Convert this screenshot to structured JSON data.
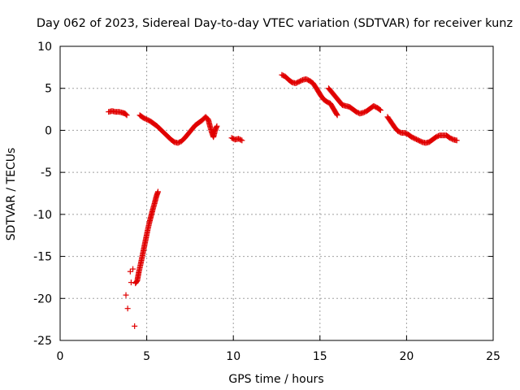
{
  "chart_data": {
    "type": "scatter",
    "title": "Day 062 of 2023, Sidereal Day-to-day VTEC variation (SDTVAR) for receiver kunz",
    "xlabel": "GPS time / hours",
    "ylabel": "SDTVAR / TECUs",
    "xlim": [
      0,
      25
    ],
    "ylim": [
      -25,
      10
    ],
    "xticks": [
      0,
      5,
      10,
      15,
      20,
      25
    ],
    "yticks": [
      -25,
      -20,
      -15,
      -10,
      -5,
      0,
      5,
      10
    ],
    "grid": true,
    "marker": "+",
    "color": "#e00000",
    "segments": [
      {
        "name": "seg-a",
        "points": [
          [
            2.8,
            2.2
          ],
          [
            3.0,
            2.3
          ],
          [
            3.2,
            2.2
          ],
          [
            3.4,
            2.2
          ],
          [
            3.6,
            2.1
          ],
          [
            3.75,
            2.0
          ],
          [
            3.85,
            1.8
          ]
        ]
      },
      {
        "name": "seg-b-outliers",
        "points": [
          [
            3.8,
            -19.6
          ],
          [
            3.9,
            -21.2
          ],
          [
            4.05,
            -16.8
          ],
          [
            4.1,
            -18.1
          ],
          [
            4.2,
            -16.5
          ],
          [
            4.3,
            -23.3
          ]
        ]
      },
      {
        "name": "seg-b-ramp",
        "points": [
          [
            4.35,
            -18.2
          ],
          [
            4.45,
            -17.9
          ],
          [
            4.55,
            -16.8
          ],
          [
            4.65,
            -15.9
          ],
          [
            4.75,
            -14.9
          ],
          [
            4.85,
            -13.9
          ],
          [
            4.95,
            -12.9
          ],
          [
            5.05,
            -11.9
          ],
          [
            5.15,
            -11.0
          ],
          [
            5.25,
            -10.2
          ],
          [
            5.35,
            -9.4
          ],
          [
            5.45,
            -8.7
          ],
          [
            5.55,
            -7.9
          ],
          [
            5.65,
            -7.3
          ]
        ]
      },
      {
        "name": "seg-c",
        "points": [
          [
            4.6,
            1.8
          ],
          [
            4.8,
            1.5
          ],
          [
            5.0,
            1.3
          ],
          [
            5.2,
            1.1
          ],
          [
            5.4,
            0.8
          ],
          [
            5.6,
            0.5
          ],
          [
            5.8,
            0.1
          ],
          [
            6.0,
            -0.3
          ],
          [
            6.2,
            -0.7
          ],
          [
            6.4,
            -1.1
          ],
          [
            6.6,
            -1.4
          ],
          [
            6.8,
            -1.5
          ],
          [
            7.0,
            -1.3
          ],
          [
            7.2,
            -0.9
          ],
          [
            7.4,
            -0.4
          ],
          [
            7.6,
            0.1
          ],
          [
            7.8,
            0.6
          ],
          [
            8.0,
            0.9
          ],
          [
            8.2,
            1.2
          ],
          [
            8.4,
            1.6
          ],
          [
            8.55,
            1.3
          ],
          [
            8.65,
            0.5
          ],
          [
            8.75,
            -0.2
          ],
          [
            8.85,
            -0.8
          ],
          [
            8.95,
            0.0
          ],
          [
            9.05,
            0.5
          ]
        ]
      },
      {
        "name": "seg-d",
        "points": [
          [
            9.9,
            -0.9
          ],
          [
            10.1,
            -1.1
          ],
          [
            10.3,
            -1.0
          ],
          [
            10.5,
            -1.2
          ]
        ]
      },
      {
        "name": "seg-e",
        "points": [
          [
            12.8,
            6.6
          ],
          [
            13.0,
            6.4
          ],
          [
            13.2,
            6.0
          ],
          [
            13.4,
            5.7
          ],
          [
            13.6,
            5.6
          ],
          [
            13.8,
            5.8
          ],
          [
            14.0,
            6.0
          ],
          [
            14.2,
            6.1
          ],
          [
            14.4,
            5.9
          ],
          [
            14.6,
            5.6
          ],
          [
            14.8,
            5.0
          ],
          [
            15.0,
            4.3
          ],
          [
            15.2,
            3.7
          ],
          [
            15.4,
            3.4
          ],
          [
            15.6,
            3.2
          ],
          [
            15.8,
            2.5
          ],
          [
            16.0,
            1.8
          ]
        ]
      },
      {
        "name": "seg-f",
        "points": [
          [
            15.5,
            5.0
          ],
          [
            15.7,
            4.5
          ],
          [
            15.9,
            4.0
          ],
          [
            16.1,
            3.5
          ],
          [
            16.3,
            3.0
          ],
          [
            16.5,
            2.9
          ],
          [
            16.7,
            2.8
          ],
          [
            16.9,
            2.5
          ],
          [
            17.1,
            2.2
          ],
          [
            17.3,
            2.0
          ],
          [
            17.5,
            2.1
          ],
          [
            17.7,
            2.3
          ],
          [
            17.9,
            2.6
          ],
          [
            18.1,
            2.9
          ],
          [
            18.3,
            2.7
          ],
          [
            18.5,
            2.4
          ]
        ]
      },
      {
        "name": "seg-g",
        "points": [
          [
            18.9,
            1.6
          ],
          [
            19.1,
            1.0
          ],
          [
            19.3,
            0.4
          ],
          [
            19.5,
            -0.1
          ],
          [
            19.7,
            -0.3
          ],
          [
            19.9,
            -0.3
          ],
          [
            20.1,
            -0.5
          ],
          [
            20.3,
            -0.8
          ],
          [
            20.5,
            -1.0
          ],
          [
            20.7,
            -1.2
          ],
          [
            20.9,
            -1.4
          ],
          [
            21.1,
            -1.5
          ],
          [
            21.3,
            -1.4
          ],
          [
            21.5,
            -1.1
          ],
          [
            21.7,
            -0.8
          ],
          [
            21.9,
            -0.6
          ],
          [
            22.1,
            -0.6
          ],
          [
            22.3,
            -0.6
          ],
          [
            22.5,
            -0.9
          ],
          [
            22.7,
            -1.1
          ],
          [
            22.9,
            -1.2
          ]
        ]
      }
    ]
  }
}
